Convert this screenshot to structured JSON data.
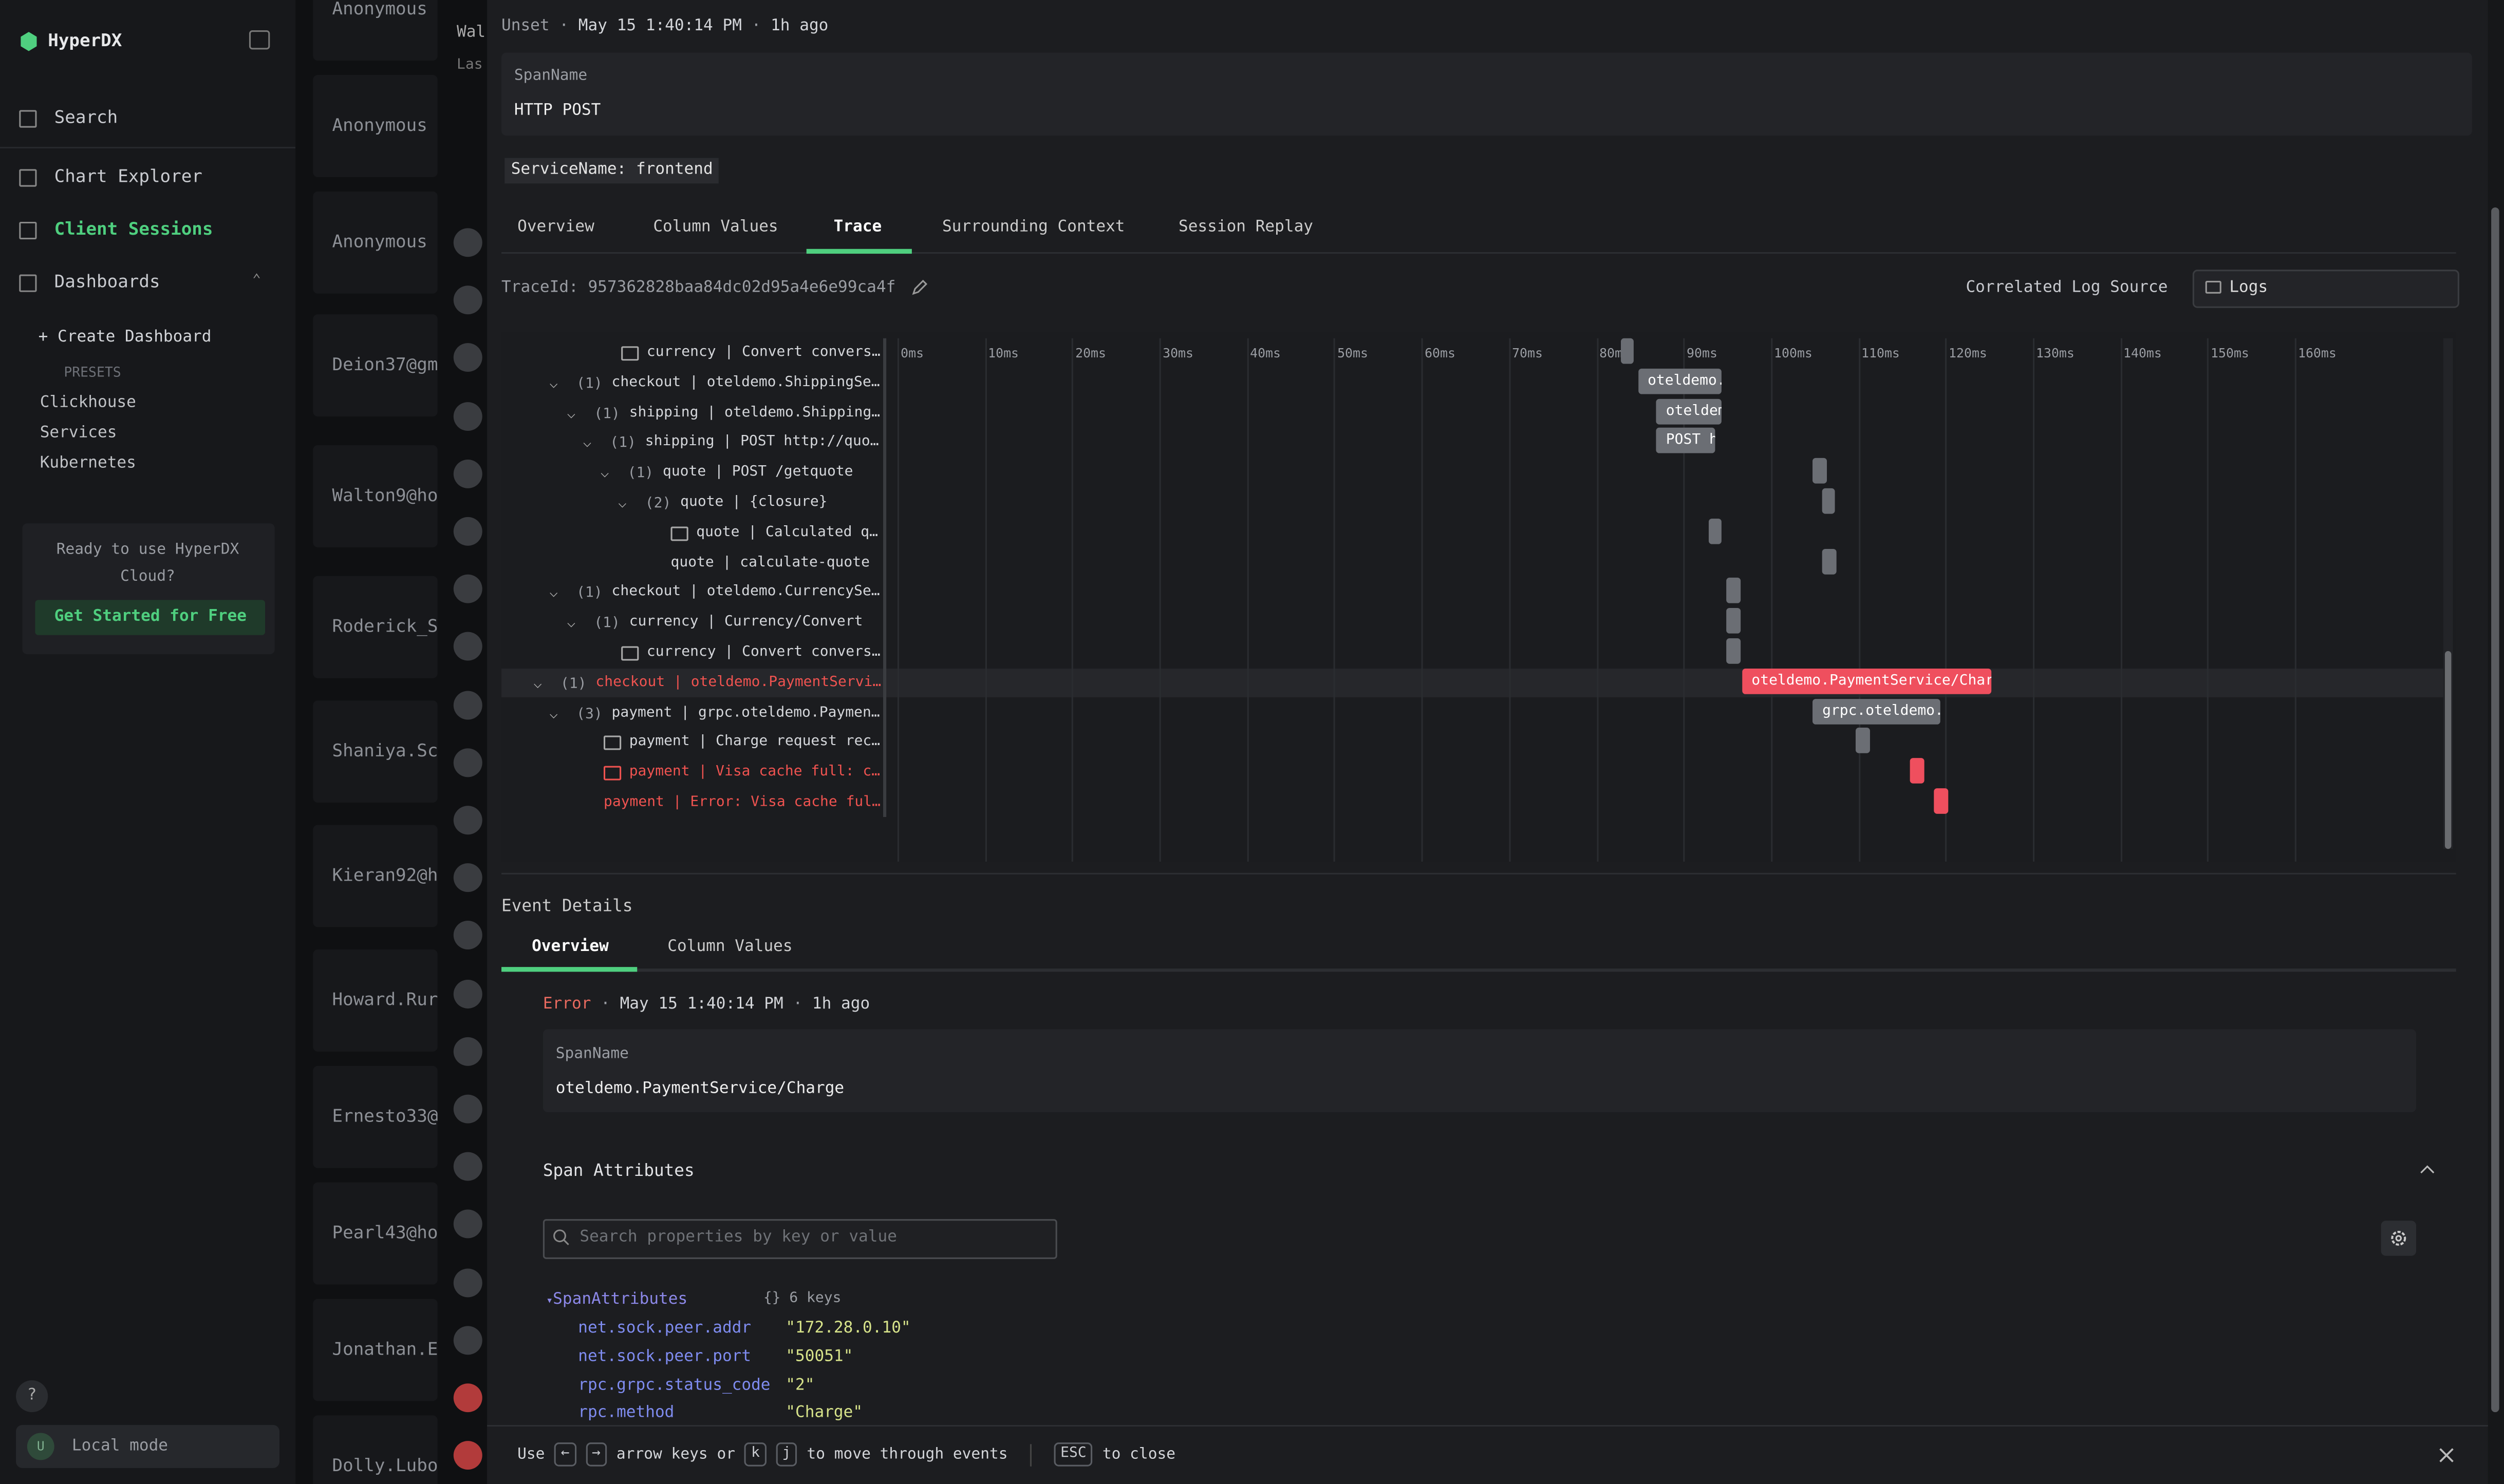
{
  "sidebar": {
    "brand": "HyperDX",
    "nav": [
      "Search",
      "Chart Explorer",
      "Client Sessions",
      "Dashboards"
    ],
    "create_dashboard": "Create Dashboard",
    "presets_label": "PRESETS",
    "presets": [
      "Clickhouse",
      "Services",
      "Kubernetes"
    ],
    "promo": "Ready to use HyperDX Cloud?",
    "promo_button": "Get Started for Free",
    "help": "?",
    "user_initial": "U",
    "mode": "Local mode"
  },
  "background": {
    "header_title": "Wal",
    "header_sub": "Las",
    "sessions": [
      "Anonymous",
      "Anonymous",
      "Anonymous",
      "Deion37@gm",
      "Walton9@ho",
      "Roderick_S",
      "Shaniya.Sc",
      "Kieran92@h",
      "Howard.Rur",
      "Ernesto33@",
      "Pearl43@ho",
      "Jonathan.E",
      "Dolly.Lubo"
    ]
  },
  "panel": {
    "status": "Unset",
    "time": "May 15 1:40:14 PM",
    "ago": "1h ago",
    "span_name_label": "SpanName",
    "span_name": "HTTP POST",
    "service_tag": "ServiceName: frontend",
    "tabs": [
      "Overview",
      "Column Values",
      "Trace",
      "Surrounding Context",
      "Session Replay"
    ],
    "trace_id": "TraceId: 957362828baa84dc02d95a4e6e99ca4f",
    "log_source_label": "Correlated Log Source",
    "log_source": "Logs",
    "timeline": {
      "ticks": [
        {
          "value": 0,
          "label": "0ms"
        },
        {
          "value": 10,
          "label": "10ms"
        },
        {
          "value": 20,
          "label": "20ms"
        },
        {
          "value": 30,
          "label": "30ms"
        },
        {
          "value": 40,
          "label": "40ms"
        },
        {
          "value": 50,
          "label": "50ms"
        },
        {
          "value": 60,
          "label": "60ms"
        },
        {
          "value": 70,
          "label": "70ms"
        },
        {
          "value": 80,
          "label": "80ms"
        },
        {
          "value": 90,
          "label": "90ms"
        },
        {
          "value": 100,
          "label": "100ms"
        },
        {
          "value": 110,
          "label": "110ms"
        },
        {
          "value": 120,
          "label": "120ms"
        },
        {
          "value": 130,
          "label": "130ms"
        },
        {
          "value": 140,
          "label": "140ms"
        },
        {
          "value": 150,
          "label": "150ms"
        },
        {
          "value": 160,
          "label": "160ms"
        }
      ],
      "rows": [
        {
          "text": "currency | Convert convers…",
          "start_ms": 82.8,
          "duration_ms": 1.5
        },
        {
          "count": "(1)",
          "text": "checkout | oteldemo.ShippingSe…",
          "start_ms": 84.8,
          "duration_ms": 9.5,
          "bar_label": "oteldemo."
        },
        {
          "count": "(1)",
          "text": "shipping | oteldemo.Shipping…",
          "start_ms": 86.9,
          "duration_ms": 7.5,
          "bar_label": "oteldem"
        },
        {
          "count": "(1)",
          "text": "shipping | POST http://quo…",
          "start_ms": 86.9,
          "duration_ms": 6.8,
          "bar_label": "POST h"
        },
        {
          "count": "(1)",
          "text": "quote | POST /getquote",
          "start_ms": 104.8,
          "duration_ms": 1.6
        },
        {
          "count": "(2)",
          "text": "quote | {closure}",
          "start_ms": 105.9,
          "duration_ms": 1.4
        },
        {
          "text": "quote | Calculated q…",
          "start_ms": 92.9,
          "duration_ms": 1.4
        },
        {
          "text": "quote | calculate-quote",
          "start_ms": 105.9,
          "duration_ms": 1.6
        },
        {
          "count": "(1)",
          "text": "checkout | oteldemo.CurrencySe…",
          "start_ms": 94.9,
          "duration_ms": 1.6
        },
        {
          "count": "(1)",
          "text": "currency | Currency/Convert",
          "start_ms": 94.9,
          "duration_ms": 1.6
        },
        {
          "text": "currency | Convert convers…",
          "start_ms": 94.9,
          "duration_ms": 1.6
        },
        {
          "count": "(1)",
          "text": "checkout | oteldemo.PaymentServi…",
          "start_ms": 96.7,
          "duration_ms": 28.5,
          "bar_label": "oteldemo.PaymentService/Char",
          "error": true
        },
        {
          "count": "(3)",
          "text": "payment | grpc.oteldemo.Paymen…",
          "start_ms": 104.8,
          "duration_ms": 14.6,
          "bar_label": "grpc.oteldemo."
        },
        {
          "text": "payment | Charge request rec…",
          "start_ms": 109.7,
          "duration_ms": 1.6
        },
        {
          "text": "payment | Visa cache full: c…",
          "start_ms": 115.9,
          "duration_ms": 1.6,
          "error": true
        },
        {
          "text": "payment | Error: Visa cache ful…",
          "start_ms": 118.7,
          "duration_ms": 1.6,
          "error": true
        }
      ]
    }
  },
  "event_details": {
    "title": "Event Details",
    "tabs": [
      "Overview",
      "Column Values"
    ],
    "status": "Error",
    "time": "May 15 1:40:14 PM",
    "ago": "1h ago",
    "span_name_label": "SpanName",
    "span_name": "oteldemo.PaymentService/Charge",
    "attributes_title": "Span Attributes",
    "search_placeholder": "Search properties by key or value",
    "attributes_key": "SpanAttributes",
    "attributes_count": "6 keys",
    "attributes": [
      {
        "key": "net.sock.peer.addr",
        "value": "\"172.28.0.10\""
      },
      {
        "key": "net.sock.peer.port",
        "value": "\"50051\""
      },
      {
        "key": "rpc.grpc.status_code",
        "value": "\"2\""
      },
      {
        "key": "rpc.method",
        "value": "\"Charge\""
      }
    ]
  },
  "footer": {
    "use": "Use",
    "key_left": "←",
    "key_right": "→",
    "arrow_text": "arrow keys or",
    "key_k": "k",
    "key_j": "j",
    "move_text": "to move through events",
    "key_esc": "ESC",
    "close_text": "to close"
  }
}
